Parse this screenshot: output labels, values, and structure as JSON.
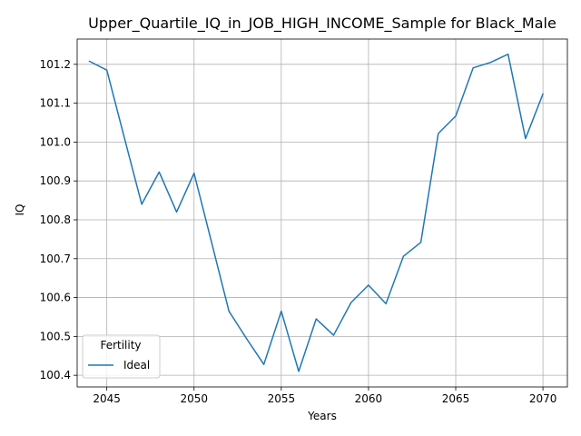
{
  "chart_data": {
    "type": "line",
    "title": "Upper_Quartile_IQ_in_JOB_HIGH_INCOME_Sample for Black_Male",
    "xlabel": "Years",
    "ylabel": "IQ",
    "xlim": [
      2043.3,
      2071.4
    ],
    "ylim": [
      100.37,
      101.265
    ],
    "x_ticks": [
      2045,
      2050,
      2055,
      2060,
      2065,
      2070
    ],
    "y_ticks": [
      100.4,
      100.5,
      100.6,
      100.7,
      100.8,
      100.9,
      101.0,
      101.1,
      101.2
    ],
    "grid": true,
    "legend": {
      "title": "Fertility",
      "placement": "lower-left"
    },
    "series": [
      {
        "name": "Ideal",
        "color": "#1f77b4",
        "x": [
          2044,
          2045,
          2046,
          2047,
          2048,
          2049,
          2050,
          2051,
          2052,
          2053,
          2054,
          2055,
          2056,
          2057,
          2058,
          2059,
          2060,
          2061,
          2062,
          2063,
          2064,
          2065,
          2066,
          2067,
          2068,
          2069,
          2070
        ],
        "y": [
          101.208,
          101.185,
          101.012,
          100.84,
          100.923,
          100.82,
          100.92,
          100.743,
          100.565,
          100.495,
          100.428,
          100.565,
          100.41,
          100.545,
          100.503,
          100.587,
          100.632,
          100.584,
          100.706,
          100.742,
          101.022,
          101.067,
          101.191,
          101.205,
          101.226,
          101.009,
          101.124
        ]
      }
    ]
  }
}
